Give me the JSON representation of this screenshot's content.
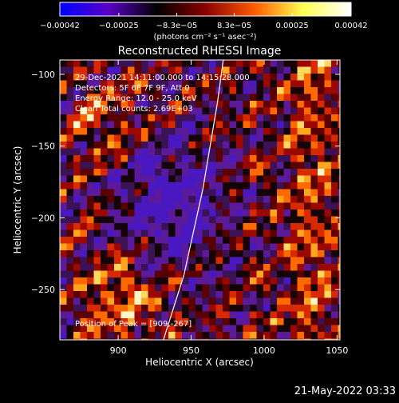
{
  "chart_data": {
    "type": "heatmap",
    "title": "Reconstructed RHESSI Image",
    "xlabel": "Heliocentric X (arcsec)",
    "ylabel": "Heliocentric Y (arcsec)",
    "xlim": [
      860,
      1052
    ],
    "ylim": [
      -285,
      -90
    ],
    "x_ticks": [
      900,
      950,
      1000,
      1050
    ],
    "y_ticks": [
      -100,
      -150,
      -200,
      -250
    ],
    "colorbar": {
      "unit_label": "(photons cm⁻² s⁻¹ asec⁻²)",
      "range": [
        -0.00042,
        0.00042
      ],
      "ticks": [
        "−0.00042",
        "−0.00025",
        "−8.3e−05",
        "8.3e−05",
        "0.00025",
        "0.00042"
      ],
      "tick_values": [
        -0.00042,
        -0.00025,
        -8.3e-05,
        8.3e-05,
        0.00025,
        0.00042
      ],
      "colors": [
        "#0000ff",
        "#5a00c8",
        "#000000",
        "#8a0000",
        "#ff5a00",
        "#ffff50",
        "#ffffff"
      ]
    },
    "annotations": [
      "29-Dec-2021 14:11:00.000 to 14:15:28.000",
      "Detectors: 5F 6F 7F 9F, Att 0",
      "Energy Range: 12.0 - 25.0 keV",
      "Clean     Total counts: 2.69E+03"
    ],
    "peak_label": "Position of Peak = [909,-267]",
    "limb_curve": [
      [
        931,
        -285
      ],
      [
        945,
        -240
      ],
      [
        958,
        -180
      ],
      [
        968,
        -120
      ],
      [
        972,
        -90
      ]
    ],
    "field_description": "mixed positive/negative speckle pattern; brightest blobs near x~905-925, y~-230 to -280 and along right side x~1000-1050"
  },
  "timestamp": "21-May-2022 03:33"
}
